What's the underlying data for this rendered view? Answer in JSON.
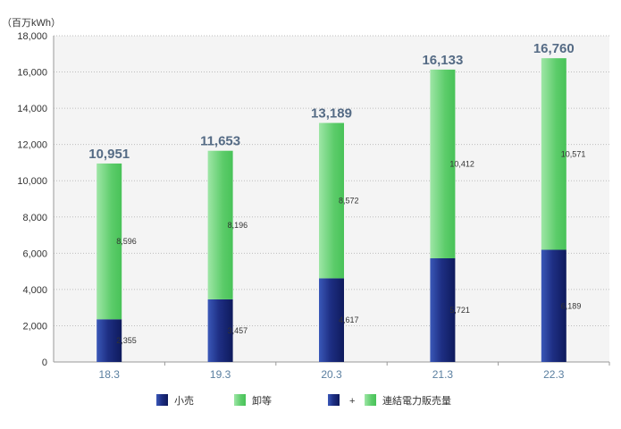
{
  "chart_data": {
    "type": "bar",
    "stacked": true,
    "unit_label": "（百万kWh）",
    "categories": [
      "18.3",
      "19.3",
      "20.3",
      "21.3",
      "22.3"
    ],
    "series": [
      {
        "name": "小売",
        "values": [
          2355,
          3457,
          4617,
          5721,
          6189
        ],
        "labels": [
          "2,355",
          "3,457",
          "4,617",
          "5,721",
          "6,189"
        ],
        "color": "#1e2f84"
      },
      {
        "name": "卸等",
        "values": [
          8596,
          8196,
          8572,
          10412,
          10571
        ],
        "labels": [
          "8,596",
          "8,196",
          "8,572",
          "10,412",
          "10,571"
        ],
        "color": "#5ccc6a"
      }
    ],
    "totals": [
      "10,951",
      "11,653",
      "13,189",
      "16,133",
      "16,760"
    ],
    "ylim": [
      0,
      18000
    ],
    "yticks": [
      "0",
      "2,000",
      "4,000",
      "6,000",
      "8,000",
      "10,000",
      "12,000",
      "14,000",
      "16,000",
      "18,000"
    ],
    "grid": true,
    "legend": {
      "position": "bottom",
      "items": [
        "小売",
        "卸等"
      ],
      "combo_plus": "+",
      "combo_label": "連結電力販売量"
    }
  }
}
